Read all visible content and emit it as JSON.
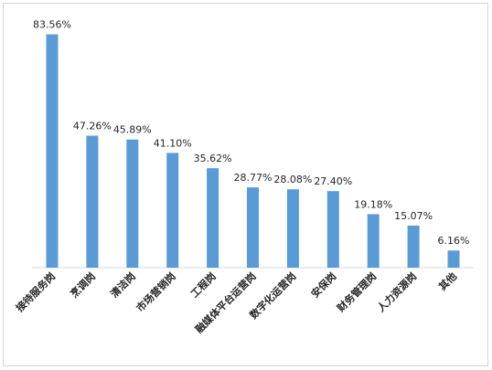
{
  "chart_data": {
    "type": "bar",
    "title": "",
    "xlabel": "",
    "ylabel": "",
    "ylim": [
      0,
      90
    ],
    "grid": false,
    "legend": "none",
    "bar_color": "#5b9bd5",
    "categories": [
      "接待服务岗",
      "烹调岗",
      "清洁岗",
      "市场营销岗",
      "工程岗",
      "融媒体平台运营岗",
      "数字化运营岗",
      "安保岗",
      "财务管理岗",
      "人力资源岗",
      "其他"
    ],
    "values": [
      83.56,
      47.26,
      45.89,
      41.1,
      35.62,
      28.77,
      28.08,
      27.4,
      19.18,
      15.07,
      6.16
    ],
    "value_labels": [
      "83.56%",
      "47.26%",
      "45.89%",
      "41.10%",
      "35.62%",
      "28.77%",
      "28.08%",
      "27.40%",
      "19.18%",
      "15.07%",
      "6.16%"
    ]
  }
}
